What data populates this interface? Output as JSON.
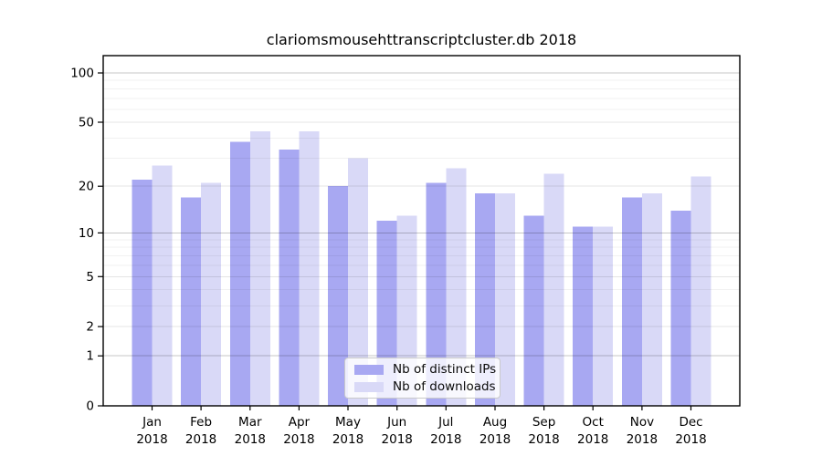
{
  "chart_data": {
    "type": "bar",
    "title": "clariomsmousehttranscriptcluster.db 2018",
    "scale": "log1p",
    "categories": [
      "Jan",
      "Feb",
      "Mar",
      "Apr",
      "May",
      "Jun",
      "Jul",
      "Aug",
      "Sep",
      "Oct",
      "Nov",
      "Dec"
    ],
    "year": "2018",
    "series": [
      {
        "name": "Nb of distinct IPs",
        "color": "#a8a8f2",
        "values": [
          22,
          17,
          38,
          34,
          20,
          12,
          21,
          18,
          13,
          11,
          17,
          14
        ]
      },
      {
        "name": "Nb of downloads",
        "color": "#d9d9f7",
        "values": [
          27,
          21,
          44,
          44,
          30,
          13,
          26,
          18,
          24,
          11,
          18,
          23
        ]
      }
    ],
    "yticks": [
      0,
      1,
      2,
      5,
      10,
      20,
      50,
      100
    ],
    "ylim": [
      0,
      128
    ],
    "grid": true,
    "legend_position": "lower center",
    "axis_color": "#000000",
    "grid_major_values": [
      1,
      10,
      100
    ],
    "grid_labeled_values": [
      2,
      5,
      20,
      50
    ]
  }
}
